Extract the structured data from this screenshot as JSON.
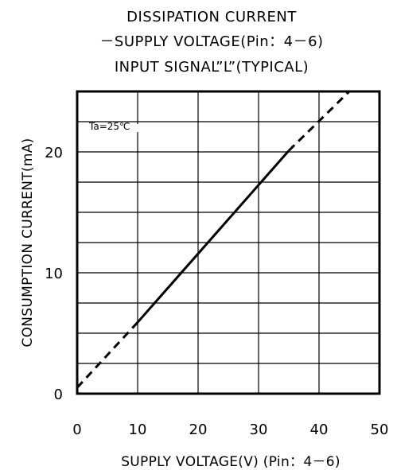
{
  "chart_data": {
    "type": "line",
    "title_lines": [
      "DISSIPATION CURRENT",
      "－SUPPLY VOLTAGE(Pin：4－6)",
      "INPUT SIGNAL”L”(TYPICAL)"
    ],
    "xlabel": "SUPPLY VOLTAGE(V) (Pin：4－6)",
    "ylabel": "CONSUMPTION CURRENT(mA)",
    "xlim": [
      0,
      50
    ],
    "ylim": [
      0,
      25
    ],
    "x_ticks": [
      0,
      10,
      20,
      30,
      40,
      50
    ],
    "y_ticks": [
      0,
      10,
      20
    ],
    "x_grid": [
      0,
      10,
      20,
      30,
      40,
      50
    ],
    "y_grid": [
      0,
      2.5,
      5,
      7.5,
      10,
      12.5,
      15,
      17.5,
      20,
      22.5,
      25
    ],
    "annotation": "Ta=25℃",
    "series": [
      {
        "style": "dashed",
        "x": [
          0,
          10
        ],
        "y": [
          0.5,
          5.9
        ]
      },
      {
        "style": "solid",
        "x": [
          10,
          35
        ],
        "y": [
          5.9,
          20.1
        ]
      },
      {
        "style": "dashed",
        "x": [
          35,
          45
        ],
        "y": [
          20.1,
          25.0
        ]
      }
    ]
  }
}
